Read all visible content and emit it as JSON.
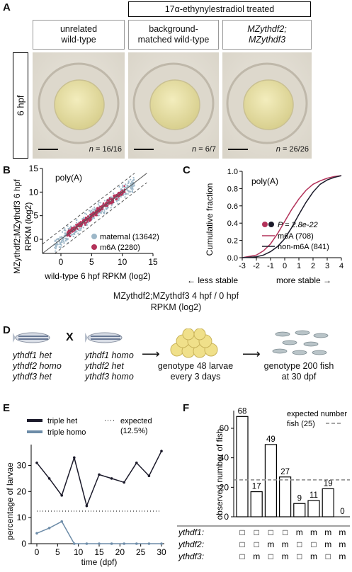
{
  "panel_a": {
    "label": "A",
    "treatment_header": "17α-ethynylestradiol treated",
    "columns": [
      {
        "title_line1": "unrelated",
        "title_line2": "wild-type",
        "n": "16/16"
      },
      {
        "title_line1": "background-",
        "title_line2": "matched wild-type",
        "n": "6/7"
      },
      {
        "title_line1": "MZythdf2;",
        "title_line2": "MZythdf3",
        "n": "26/26"
      }
    ],
    "row_label": "6 hpf",
    "n_prefix": "n"
  },
  "panel_b": {
    "label": "B",
    "annotation": "poly(A)",
    "chart_data": {
      "type": "scatter",
      "xlabel": "wild-type 6 hpf RPKM (log2)",
      "ylabel_line1": "MZythdf2;MZythdf3 6 hpf",
      "ylabel_line2": "RPKM (log2)",
      "x_ticks": [
        "0",
        "5",
        "10",
        "15"
      ],
      "y_ticks": [
        "0",
        "5",
        "10",
        "15"
      ],
      "xlim": [
        -3,
        15
      ],
      "ylim": [
        -3,
        15
      ],
      "series": [
        {
          "name": "maternal",
          "count": "(13642)",
          "color": "#9db7c8"
        },
        {
          "name": "m6A",
          "count": "(2280)",
          "color": "#b3325a"
        }
      ]
    }
  },
  "panel_c": {
    "label": "C",
    "annotation": "poly(A)",
    "p_value": "P = 2.8e-22",
    "chart_data": {
      "type": "line",
      "ylabel": "Cumulative fraction",
      "xlabel_line1": "MZythdf2;MZythdf3 4 hpf / 0 hpf",
      "xlabel_line2": "RPKM (log2)",
      "x_ticks": [
        "-3",
        "-2",
        "-1",
        "0",
        "1",
        "2",
        "3",
        "4"
      ],
      "y_ticks": [
        "0.0",
        "0.2",
        "0.4",
        "0.6",
        "0.8",
        "1.0"
      ],
      "xlim": [
        -3,
        4
      ],
      "ylim": [
        0,
        1
      ],
      "series": [
        {
          "name": "m6A",
          "count": "(708)",
          "color": "#b3325a",
          "x": [
            -3,
            -2,
            -1.5,
            -1,
            -0.5,
            0,
            0.5,
            1,
            1.5,
            2,
            2.5,
            3,
            3.5,
            4
          ],
          "y": [
            0.0,
            0.03,
            0.08,
            0.16,
            0.28,
            0.42,
            0.56,
            0.68,
            0.78,
            0.85,
            0.89,
            0.92,
            0.94,
            0.95
          ]
        },
        {
          "name": "non-m6A",
          "count": "(841)",
          "color": "#1b1a2a",
          "x": [
            -3,
            -2,
            -1.5,
            -1,
            -0.5,
            0,
            0.5,
            1,
            1.5,
            2,
            2.5,
            3,
            3.5,
            4
          ],
          "y": [
            0.0,
            0.01,
            0.03,
            0.07,
            0.13,
            0.22,
            0.35,
            0.5,
            0.64,
            0.76,
            0.85,
            0.9,
            0.93,
            0.95
          ]
        }
      ],
      "arrow_left": "less stable",
      "arrow_right": "more stable"
    }
  },
  "panel_d": {
    "label": "D",
    "cross_symbol": "X",
    "parent1": [
      "ythdf1 het",
      "ythdf2 homo",
      "ythdf3 het"
    ],
    "parent2": [
      "ythdf1 homo",
      "ythdf2 het",
      "ythdf3 homo"
    ],
    "step1": [
      "genotype 48 larvae",
      "every 3 days"
    ],
    "step2": [
      "genotype 200 fish",
      "at 30 dpf"
    ]
  },
  "panel_e": {
    "label": "E",
    "legend_expected_line1": "expected",
    "legend_expected_line2": "(12.5%)",
    "chart_data": {
      "type": "line",
      "xlabel": "time (dpf)",
      "ylabel": "percentage of larvae",
      "x_ticks": [
        "0",
        "5",
        "10",
        "15",
        "20",
        "25",
        "30"
      ],
      "y_ticks": [
        "0",
        "10",
        "20",
        "30"
      ],
      "xlim": [
        0,
        30
      ],
      "ylim": [
        0,
        38
      ],
      "expected": 12.5,
      "series": [
        {
          "name": "triple het",
          "color": "#1b1a2a",
          "x": [
            0,
            3,
            6,
            9,
            12,
            15,
            18,
            21,
            24,
            27,
            30
          ],
          "y": [
            31,
            25,
            18.5,
            33,
            14.5,
            26.5,
            25,
            23.5,
            31,
            26,
            35.5
          ]
        },
        {
          "name": "triple homo",
          "color": "#6d8ca8",
          "x": [
            0,
            3,
            6,
            9,
            12,
            15,
            18,
            21,
            24,
            27,
            30
          ],
          "y": [
            4,
            6,
            8.5,
            0,
            0,
            0,
            0,
            0,
            0,
            0,
            0
          ]
        }
      ]
    }
  },
  "panel_f": {
    "label": "F",
    "legend_line1": "expected number",
    "legend_line2": "fish (25)",
    "genotype_labels": [
      "ythdf1:",
      "ythdf2:",
      "ythdf3:"
    ],
    "chart_data": {
      "type": "bar",
      "ylabel": "observed number of fish",
      "y_ticks": [
        "0",
        "20",
        "40",
        "60"
      ],
      "ylim": [
        0,
        72
      ],
      "expected": 25,
      "values": [
        68,
        17,
        49,
        27,
        9,
        11,
        19,
        0
      ],
      "value_labels": [
        "68",
        "17",
        "49",
        "27",
        "9",
        "11",
        "19",
        "0"
      ],
      "genotypes": [
        [
          "□",
          "□",
          "□"
        ],
        [
          "□",
          "□",
          "m"
        ],
        [
          "□",
          "m",
          "□"
        ],
        [
          "□",
          "m",
          "m"
        ],
        [
          "m",
          "□",
          "□"
        ],
        [
          "m",
          "□",
          "m"
        ],
        [
          "m",
          "m",
          "□"
        ],
        [
          "m",
          "m",
          "m"
        ]
      ]
    }
  }
}
